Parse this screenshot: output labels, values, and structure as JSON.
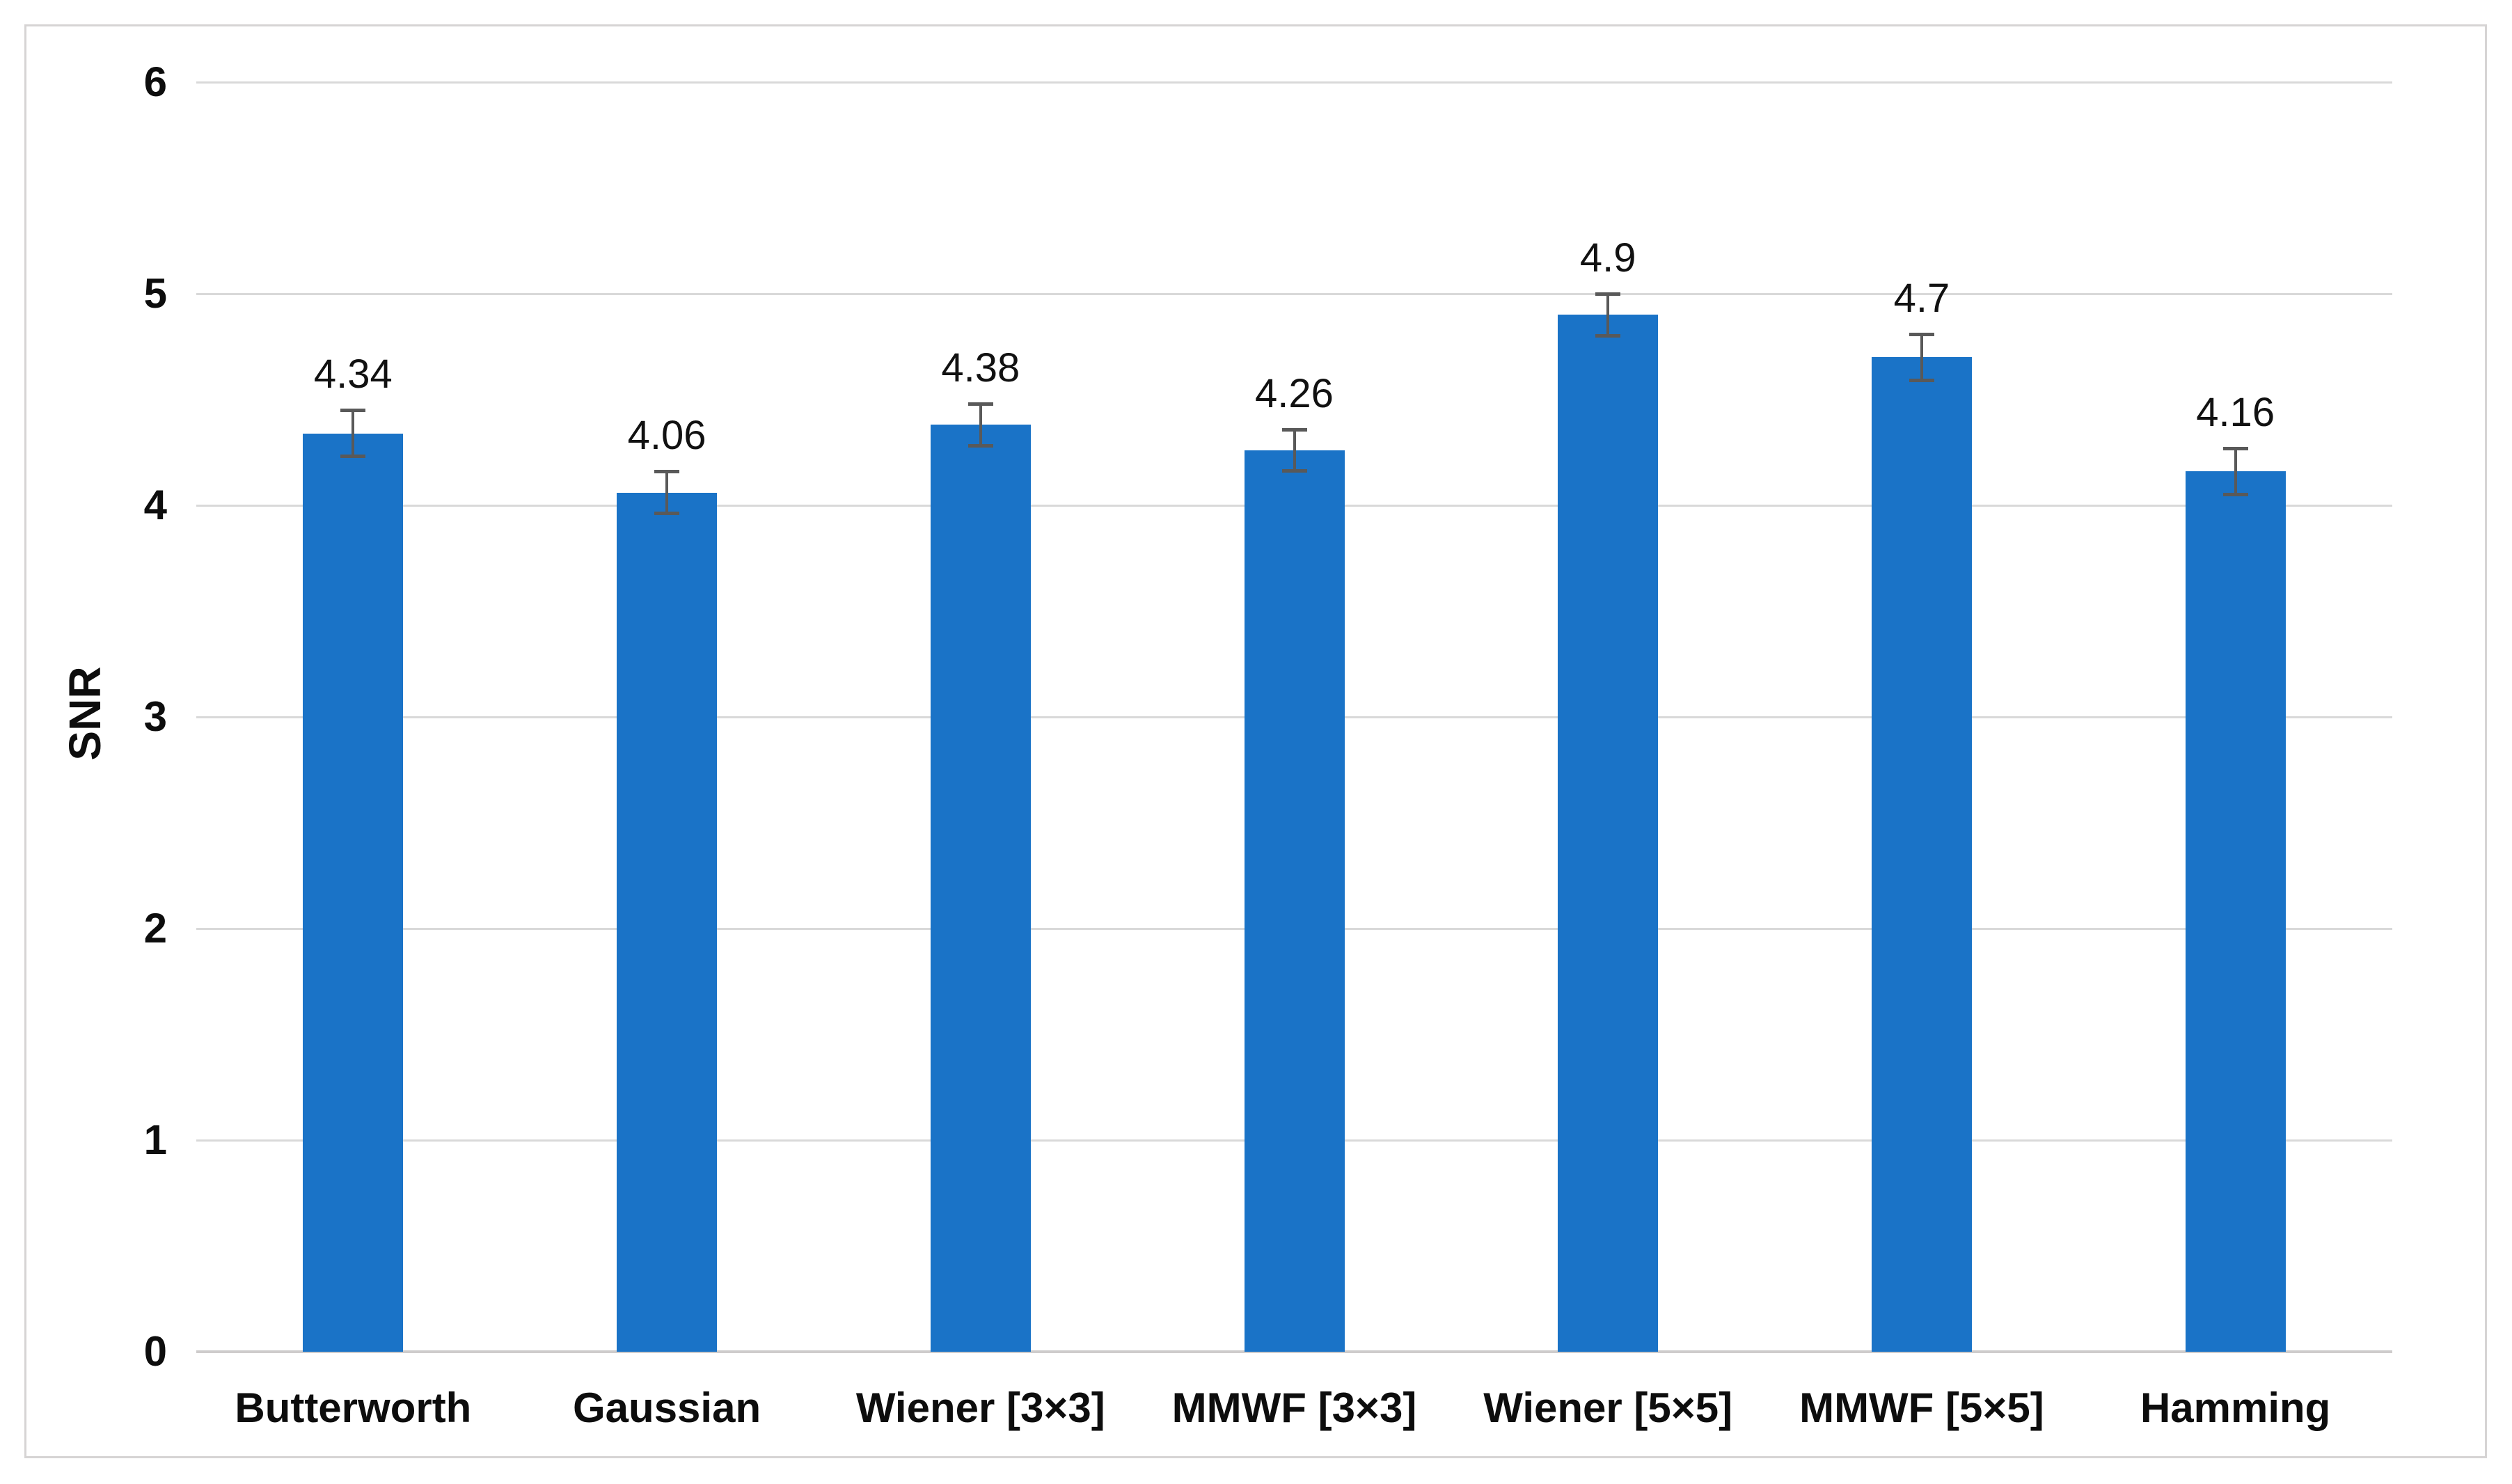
{
  "figure": {
    "background_color": "#ffffff",
    "border_color": "#d6d4d4"
  },
  "chart_data": {
    "type": "bar",
    "title": "",
    "xlabel": "",
    "ylabel": "SNR",
    "categories": [
      "Butterworth",
      "Gaussian",
      "Wiener [3×3]",
      "MMWF [3×3]",
      "Wiener [5×5]",
      "MMWF [5×5]",
      "Hamming"
    ],
    "values": [
      4.34,
      4.06,
      4.38,
      4.26,
      4.9,
      4.7,
      4.16
    ],
    "value_labels": [
      "4.34",
      "4.06",
      "4.38",
      "4.26",
      "4.9",
      "4.7",
      "4.16"
    ],
    "error_bars": [
      0.11,
      0.1,
      0.1,
      0.1,
      0.1,
      0.11,
      0.11
    ],
    "ylim": [
      0,
      6
    ],
    "yticks": [
      0,
      1,
      2,
      3,
      4,
      5,
      6
    ],
    "ytick_labels": [
      "0",
      "1",
      "2",
      "3",
      "4",
      "5",
      "6"
    ],
    "grid": true,
    "legend": false,
    "bar_color": "#1a73c7",
    "error_color": "#595959",
    "gridline_color": "#d9d9d9",
    "axis_line_color": "#cecccc",
    "text_color": "#0d0d0d"
  }
}
